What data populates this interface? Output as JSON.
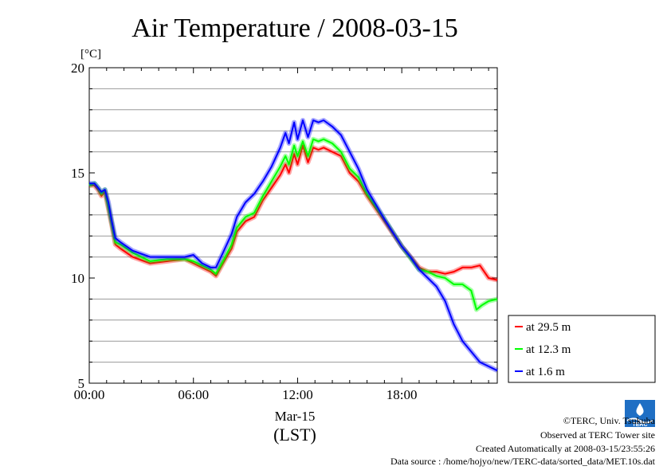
{
  "title": "Air Temperature / 2008-03-15",
  "colors": {
    "background": "#ffffff",
    "grid": "#999999",
    "axis": "#000000"
  },
  "chart_data": {
    "type": "line",
    "title": "Air Temperature / 2008-03-15",
    "ylabel": "[°C]",
    "xlabel": "(LST)",
    "date_label": "Mar-15",
    "xlim": [
      0,
      23.5
    ],
    "ylim": [
      5,
      20
    ],
    "x_unit": "hours (LST)",
    "x_ticks": [
      {
        "value": 0,
        "label": "00:00"
      },
      {
        "value": 6,
        "label": "06:00"
      },
      {
        "value": 12,
        "label": "12:00"
      },
      {
        "value": 18,
        "label": "18:00"
      }
    ],
    "y_ticks": [
      {
        "value": 5,
        "label": "5"
      },
      {
        "value": 10,
        "label": "10"
      },
      {
        "value": 15,
        "label": "15"
      },
      {
        "value": 20,
        "label": "20"
      }
    ],
    "y_gridlines": [
      6,
      7,
      8,
      9,
      11,
      12,
      13,
      14,
      16,
      17,
      18,
      19
    ],
    "legend_position": "lower-right outside",
    "series": [
      {
        "name": "at 29.5 m",
        "color": "#ff0000",
        "x": [
          0,
          0.3,
          0.5,
          0.7,
          0.9,
          1.1,
          1.3,
          1.5,
          1.8,
          2.5,
          3.5,
          4.5,
          5.5,
          6.0,
          6.5,
          7.0,
          7.3,
          7.7,
          8.2,
          8.5,
          9.0,
          9.5,
          10.0,
          10.5,
          11.0,
          11.3,
          11.5,
          11.8,
          12.0,
          12.3,
          12.6,
          12.9,
          13.2,
          13.5,
          14.0,
          14.5,
          15.0,
          15.5,
          16.0,
          17.0,
          18.0,
          19.0,
          19.5,
          20.0,
          20.5,
          21.0,
          21.5,
          22.0,
          22.5,
          23.0,
          23.5
        ],
        "y": [
          14.4,
          14.4,
          14.2,
          13.9,
          14.1,
          13.3,
          12.5,
          11.6,
          11.4,
          11.0,
          10.7,
          10.8,
          10.9,
          10.7,
          10.5,
          10.3,
          10.1,
          10.7,
          11.4,
          12.2,
          12.7,
          12.9,
          13.7,
          14.3,
          14.9,
          15.4,
          15.0,
          15.9,
          15.4,
          16.3,
          15.5,
          16.2,
          16.1,
          16.2,
          16.0,
          15.8,
          15.0,
          14.6,
          13.9,
          12.7,
          11.5,
          10.5,
          10.3,
          10.3,
          10.2,
          10.3,
          10.5,
          10.5,
          10.6,
          10.0,
          9.9
        ]
      },
      {
        "name": "at 12.3 m",
        "color": "#00ff00",
        "x": [
          0,
          0.3,
          0.5,
          0.7,
          0.9,
          1.1,
          1.3,
          1.5,
          1.8,
          2.5,
          3.5,
          4.5,
          5.5,
          6.0,
          6.5,
          7.0,
          7.3,
          7.7,
          8.2,
          8.5,
          9.0,
          9.5,
          10.0,
          10.5,
          11.0,
          11.3,
          11.5,
          11.8,
          12.0,
          12.3,
          12.6,
          12.9,
          13.2,
          13.5,
          14.0,
          14.5,
          15.0,
          15.5,
          16.0,
          17.0,
          18.0,
          19.0,
          19.5,
          20.0,
          20.5,
          21.0,
          21.5,
          22.0,
          22.3,
          22.6,
          23.0,
          23.5
        ],
        "y": [
          14.4,
          14.5,
          14.3,
          14.0,
          14.2,
          13.4,
          12.6,
          11.7,
          11.6,
          11.2,
          10.8,
          10.9,
          10.9,
          10.8,
          10.6,
          10.4,
          10.2,
          10.8,
          11.6,
          12.4,
          12.9,
          13.1,
          13.9,
          14.6,
          15.3,
          15.8,
          15.4,
          16.3,
          15.8,
          16.5,
          15.8,
          16.6,
          16.5,
          16.6,
          16.4,
          16.0,
          15.2,
          14.8,
          14.0,
          12.8,
          11.5,
          10.4,
          10.3,
          10.1,
          10.0,
          9.7,
          9.7,
          9.4,
          8.5,
          8.7,
          8.9,
          9.0
        ]
      },
      {
        "name": "at 1.6 m",
        "color": "#0000ff",
        "x": [
          0,
          0.3,
          0.5,
          0.7,
          0.9,
          1.1,
          1.3,
          1.5,
          1.8,
          2.5,
          3.5,
          4.5,
          5.5,
          6.0,
          6.5,
          7.0,
          7.3,
          7.7,
          8.2,
          8.5,
          9.0,
          9.5,
          10.0,
          10.5,
          11.0,
          11.3,
          11.5,
          11.8,
          12.0,
          12.3,
          12.6,
          12.9,
          13.2,
          13.5,
          14.0,
          14.5,
          15.0,
          15.5,
          16.0,
          17.0,
          18.0,
          18.5,
          19.0,
          19.5,
          20.0,
          20.5,
          21.0,
          21.5,
          22.0,
          22.5,
          23.0,
          23.5
        ],
        "y": [
          14.5,
          14.5,
          14.3,
          14.1,
          14.2,
          13.6,
          12.7,
          11.9,
          11.7,
          11.3,
          11.0,
          11.0,
          11.0,
          11.1,
          10.7,
          10.5,
          10.5,
          11.2,
          12.1,
          12.9,
          13.6,
          14.0,
          14.6,
          15.3,
          16.2,
          16.9,
          16.4,
          17.4,
          16.6,
          17.5,
          16.7,
          17.5,
          17.4,
          17.5,
          17.2,
          16.8,
          16.0,
          15.2,
          14.2,
          12.8,
          11.5,
          11.0,
          10.4,
          10.0,
          9.6,
          8.9,
          7.8,
          7.0,
          6.5,
          6.0,
          5.8,
          5.6
        ]
      }
    ]
  },
  "footer": {
    "copyright": "©TERC, Univ. Tsukuba",
    "site": "Observed at TERC Tower site",
    "created": "Created Automatically at 2008-03-15/23:55:26",
    "source": "Data source : /home/hojyo/new/TERC-data/sorted_data/MET.10s.dat"
  },
  "logo": {
    "text": "TERC",
    "color": "#1f6fc4"
  }
}
